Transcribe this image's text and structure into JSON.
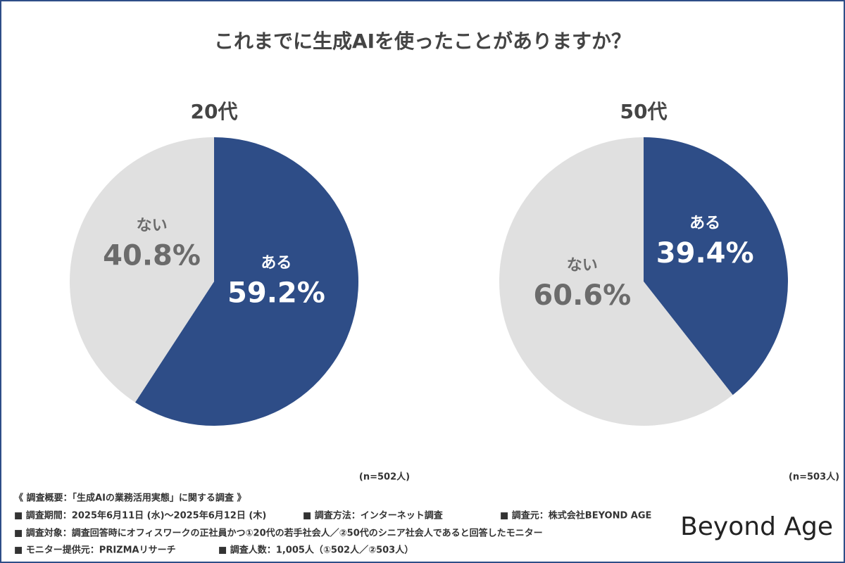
{
  "title": "これまでに生成AIを使ったことがありますか？",
  "chart_data": [
    {
      "type": "pie",
      "title": "20代",
      "categories": [
        "ある",
        "ない"
      ],
      "values": [
        59.2,
        40.8
      ],
      "value_labels": [
        "59.2%",
        "40.8%"
      ],
      "colors": [
        "#2e4d87",
        "#e0e0e0"
      ],
      "note": "(n=502人)"
    },
    {
      "type": "pie",
      "title": "50代",
      "categories": [
        "ある",
        "ない"
      ],
      "values": [
        39.4,
        60.6
      ],
      "value_labels": [
        "39.4%",
        "60.6%"
      ],
      "colors": [
        "#2e4d87",
        "#e0e0e0"
      ],
      "note": "(n=503人)"
    }
  ],
  "notes": {
    "heading": "《 調査概要：「生成AIの業務活用実態」に関する調査 》",
    "rows": [
      [
        "■ 調査期間：2025年6月11日 (水)〜2025年6月12日 (木)",
        "■ 調査方法：インターネット調査",
        "■ 調査元：株式会社BEYOND AGE"
      ],
      [
        "■ 調査対象：調査回答時にオフィスワークの正社員かつ①20代の若手社会人／②50代のシニア社会人であると回答したモニター"
      ],
      [
        "■ モニター提供元：PRIZMAリサーチ",
        "■ 調査人数：1,005人（①502人／②503人）"
      ]
    ]
  },
  "brand": "Beyond Age"
}
